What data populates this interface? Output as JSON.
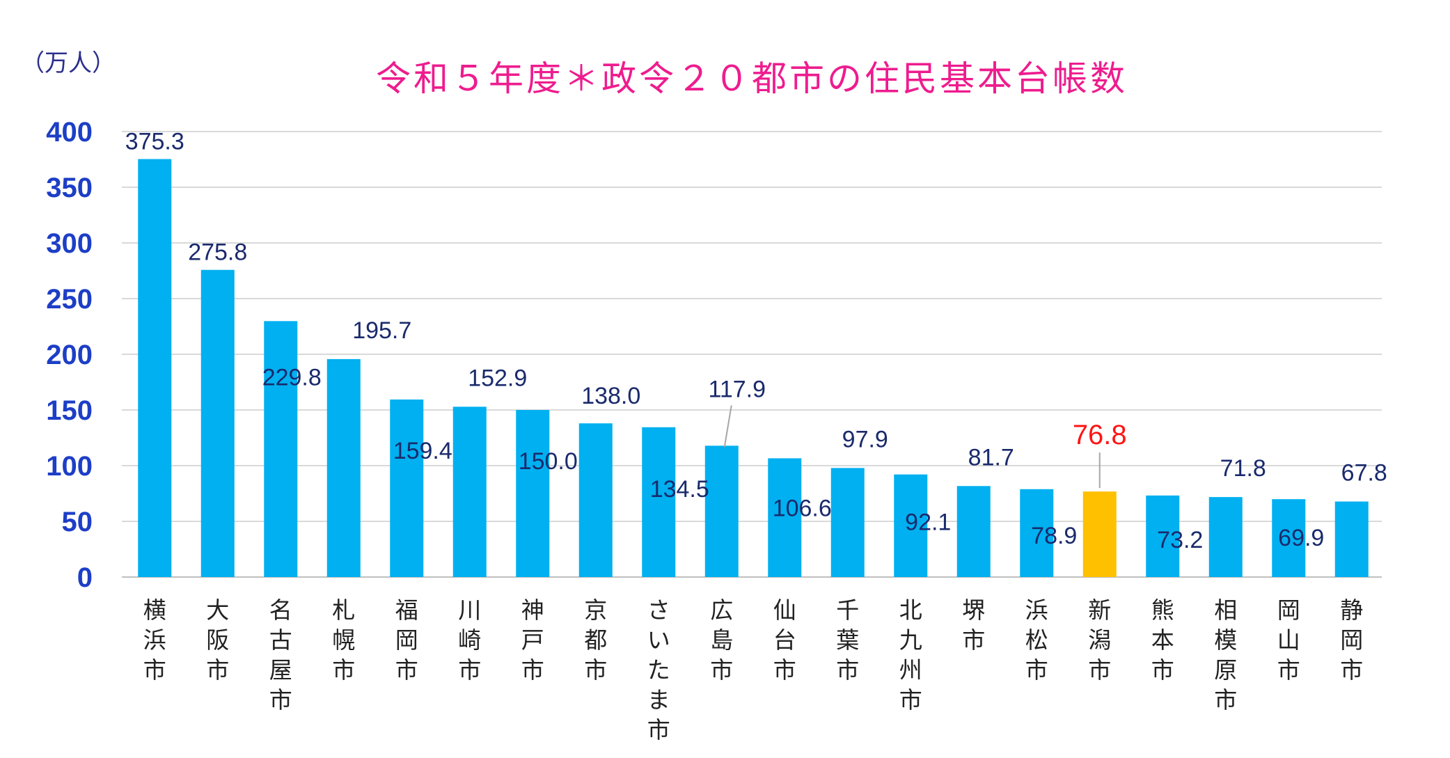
{
  "chart_data": {
    "type": "bar",
    "title": "令和５年度＊政令２０都市の住民基本台帳数",
    "unit_label": "（万人）",
    "ylim": [
      0,
      400
    ],
    "yticks": [
      0,
      50,
      100,
      150,
      200,
      250,
      300,
      350,
      400
    ],
    "grid": true,
    "legend": "none",
    "categories": [
      "横浜市",
      "大阪市",
      "名古屋市",
      "札幌市",
      "福岡市",
      "川崎市",
      "神戸市",
      "京都市",
      "さいたま市",
      "広島市",
      "仙台市",
      "千葉市",
      "北九州市",
      "堺市",
      "浜松市",
      "新潟市",
      "熊本市",
      "相模原市",
      "岡山市",
      "静岡市"
    ],
    "values": [
      375.3,
      275.8,
      229.8,
      195.7,
      159.4,
      152.9,
      150.0,
      138.0,
      134.5,
      117.9,
      106.6,
      97.9,
      92.1,
      81.7,
      78.9,
      76.8,
      73.2,
      71.8,
      69.9,
      67.8
    ],
    "value_labels": [
      "375.3",
      "275.8",
      "229.8",
      "195.7",
      "159.4",
      "152.9",
      "150.0",
      "138.0",
      "134.5",
      "117.9",
      "106.6",
      "97.9",
      "92.1",
      "81.7",
      "78.9",
      "76.8",
      "73.2",
      "71.8",
      "69.9",
      "67.8"
    ],
    "highlight_category": "新潟市",
    "colors": {
      "bar": "#00b0f0",
      "highlight_bar": "#ffc000",
      "highlight_label": "#ff1414",
      "title": "#ee1c8e",
      "ytick": "#1d3ec6"
    }
  }
}
